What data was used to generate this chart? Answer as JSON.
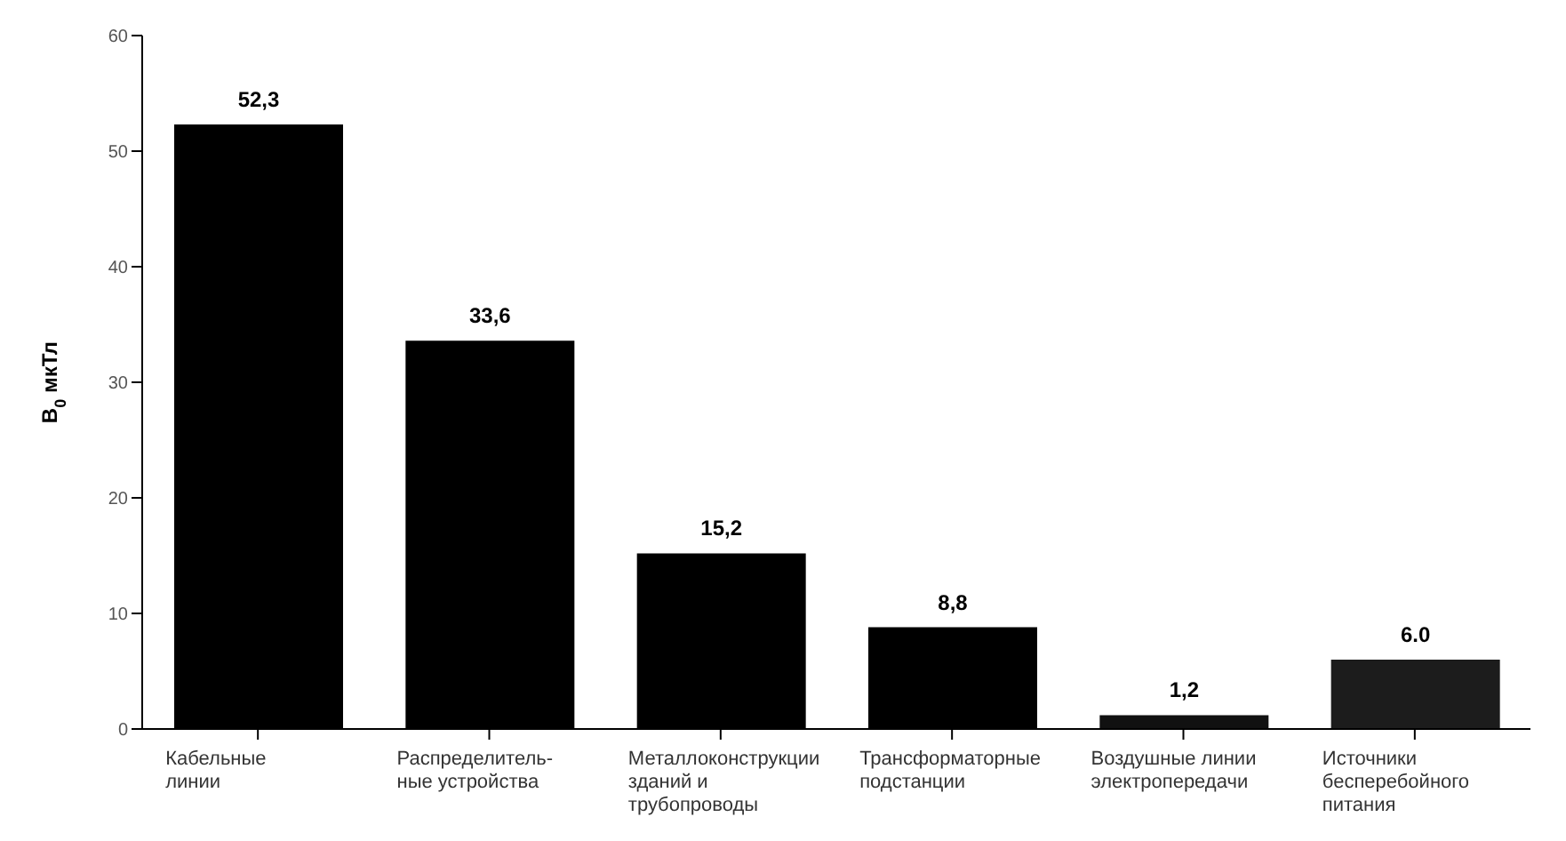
{
  "chart_data": {
    "type": "bar",
    "ylabel": "В$_{0}$  мкТл",
    "categories": [
      "Кабельные\nлинии",
      "Распределитель-\nные устройства",
      "Металлоконструкции\nзданий и\nтрубопроводы",
      "Трансформаторные\nподстанции",
      "Воздушные линии\nэлектропередачи",
      "Источники\nбесперебойного\nпитания"
    ],
    "values": [
      52.3,
      33.6,
      15.2,
      8.8,
      1.2,
      6.0
    ],
    "colors": [
      "#000000",
      "#000000",
      "#000000",
      "#000000",
      "#111111",
      "#1c1c1c"
    ],
    "value_labels": [
      "52,3",
      "33,6",
      "15,2",
      "8,8",
      "1,2",
      "6.0"
    ],
    "ylim": [
      0,
      60
    ],
    "yticks": [
      0,
      10,
      20,
      30,
      40,
      50,
      60
    ],
    "grid": false
  }
}
